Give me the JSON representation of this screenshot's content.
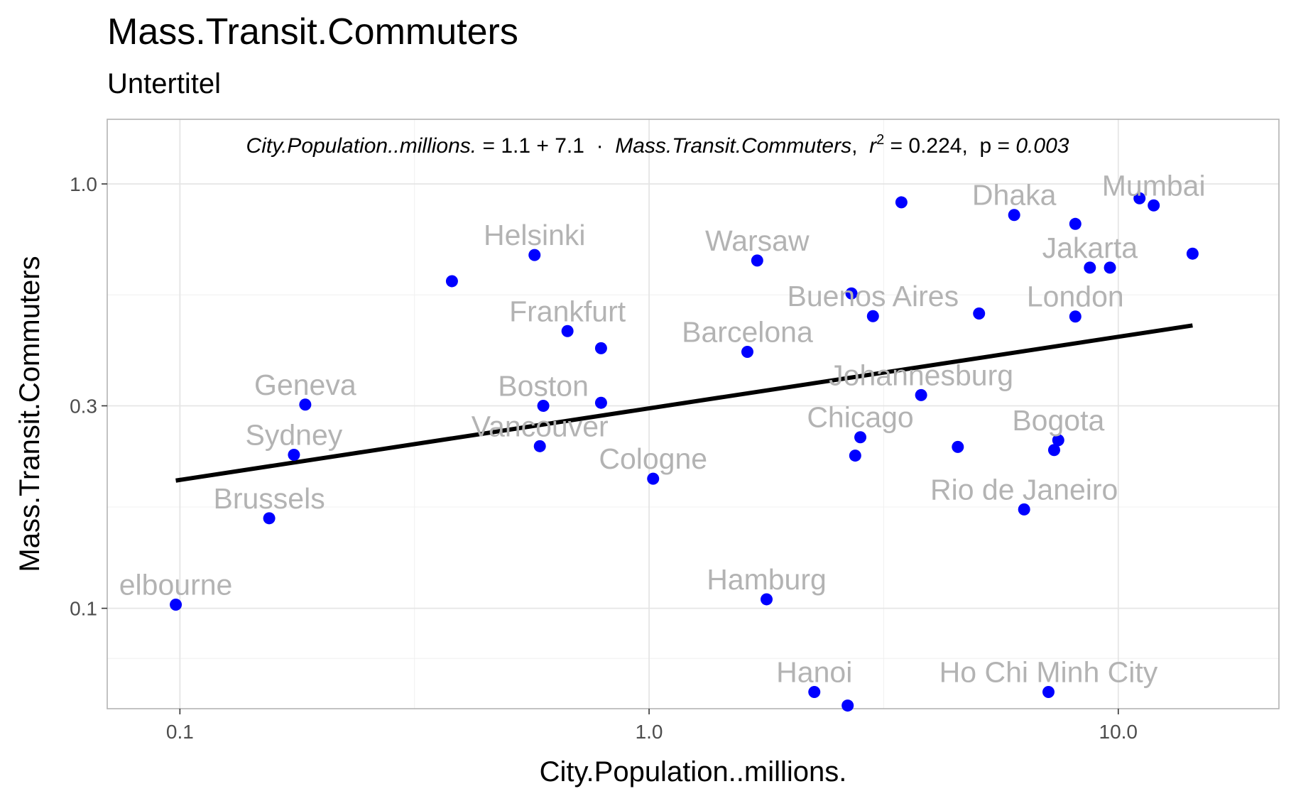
{
  "chart_data": {
    "type": "scatter",
    "title": "Mass.Transit.Commuters",
    "subtitle": "Untertitel",
    "xlabel": "City.Population..millions.",
    "ylabel": "Mass.Transit.Commuters",
    "x_scale": "log10",
    "y_scale": "log10",
    "xlim": [
      0.07,
      22
    ],
    "ylim": [
      0.058,
      1.42
    ],
    "x_ticks": [
      0.1,
      1.0,
      10.0
    ],
    "x_tick_labels": [
      "0.1",
      "1.0",
      "10.0"
    ],
    "y_ticks": [
      0.1,
      0.3,
      1.0
    ],
    "y_tick_labels": [
      "0.1",
      "0.3",
      "1.0"
    ],
    "grid": true,
    "legend": "none",
    "point_color": "#0000ff",
    "label_color": "#b3b3b3",
    "line_color": "#000000",
    "points": [
      {
        "x": 0.098,
        "y": 0.102,
        "label": "elbourne"
      },
      {
        "x": 0.155,
        "y": 0.163,
        "label": "Brussels"
      },
      {
        "x": 0.175,
        "y": 0.23,
        "label": "Sydney"
      },
      {
        "x": 0.185,
        "y": 0.302,
        "label": "Geneva"
      },
      {
        "x": 0.38,
        "y": 0.59,
        "label": ""
      },
      {
        "x": 0.57,
        "y": 0.68,
        "label": "Helsinki"
      },
      {
        "x": 0.585,
        "y": 0.241,
        "label": "Vancouver"
      },
      {
        "x": 0.595,
        "y": 0.3,
        "label": "Boston"
      },
      {
        "x": 0.67,
        "y": 0.45,
        "label": "Frankfurt"
      },
      {
        "x": 0.79,
        "y": 0.41,
        "label": ""
      },
      {
        "x": 0.79,
        "y": 0.305,
        "label": ""
      },
      {
        "x": 1.02,
        "y": 0.202,
        "label": "Cologne"
      },
      {
        "x": 1.62,
        "y": 0.402,
        "label": "Barcelona"
      },
      {
        "x": 1.7,
        "y": 0.66,
        "label": "Warsaw"
      },
      {
        "x": 1.78,
        "y": 0.105,
        "label": "Hamburg"
      },
      {
        "x": 2.25,
        "y": 0.0635,
        "label": "Hanoi"
      },
      {
        "x": 2.65,
        "y": 0.059,
        "label": ""
      },
      {
        "x": 2.7,
        "y": 0.552,
        "label": ""
      },
      {
        "x": 2.75,
        "y": 0.229,
        "label": ""
      },
      {
        "x": 2.82,
        "y": 0.253,
        "label": "Chicago"
      },
      {
        "x": 3.0,
        "y": 0.488,
        "label": "Buenos Aires"
      },
      {
        "x": 3.45,
        "y": 0.905,
        "label": ""
      },
      {
        "x": 3.8,
        "y": 0.318,
        "label": "Johannesburg"
      },
      {
        "x": 4.55,
        "y": 0.24,
        "label": ""
      },
      {
        "x": 5.05,
        "y": 0.495,
        "label": ""
      },
      {
        "x": 6.0,
        "y": 0.845,
        "label": "Dhaka"
      },
      {
        "x": 6.3,
        "y": 0.171,
        "label": "Rio de Janeiro"
      },
      {
        "x": 7.1,
        "y": 0.0635,
        "label": "Ho Chi Minh City"
      },
      {
        "x": 7.3,
        "y": 0.236,
        "label": ""
      },
      {
        "x": 7.45,
        "y": 0.249,
        "label": "Bogota"
      },
      {
        "x": 8.1,
        "y": 0.805,
        "label": ""
      },
      {
        "x": 8.1,
        "y": 0.487,
        "label": "London"
      },
      {
        "x": 8.7,
        "y": 0.635,
        "label": "Jakarta"
      },
      {
        "x": 9.6,
        "y": 0.635,
        "label": ""
      },
      {
        "x": 11.1,
        "y": 0.925,
        "label": ""
      },
      {
        "x": 11.9,
        "y": 0.89,
        "label": "Mumbai"
      },
      {
        "x": 14.4,
        "y": 0.685,
        "label": ""
      }
    ],
    "fit_line": {
      "x": [
        0.098,
        14.4
      ],
      "y": [
        0.2,
        0.464
      ]
    },
    "annotation": {
      "lhs": "City.Population..millions.",
      "eq": " = 1.1 + 7.1  ·  ",
      "rhs": "Mass.Transit.Commuters",
      "sep": ",  ",
      "r_symbol": "r",
      "r_exp": "2",
      "r_val": " = 0.224,  p = ",
      "p_val": "0.003"
    }
  }
}
